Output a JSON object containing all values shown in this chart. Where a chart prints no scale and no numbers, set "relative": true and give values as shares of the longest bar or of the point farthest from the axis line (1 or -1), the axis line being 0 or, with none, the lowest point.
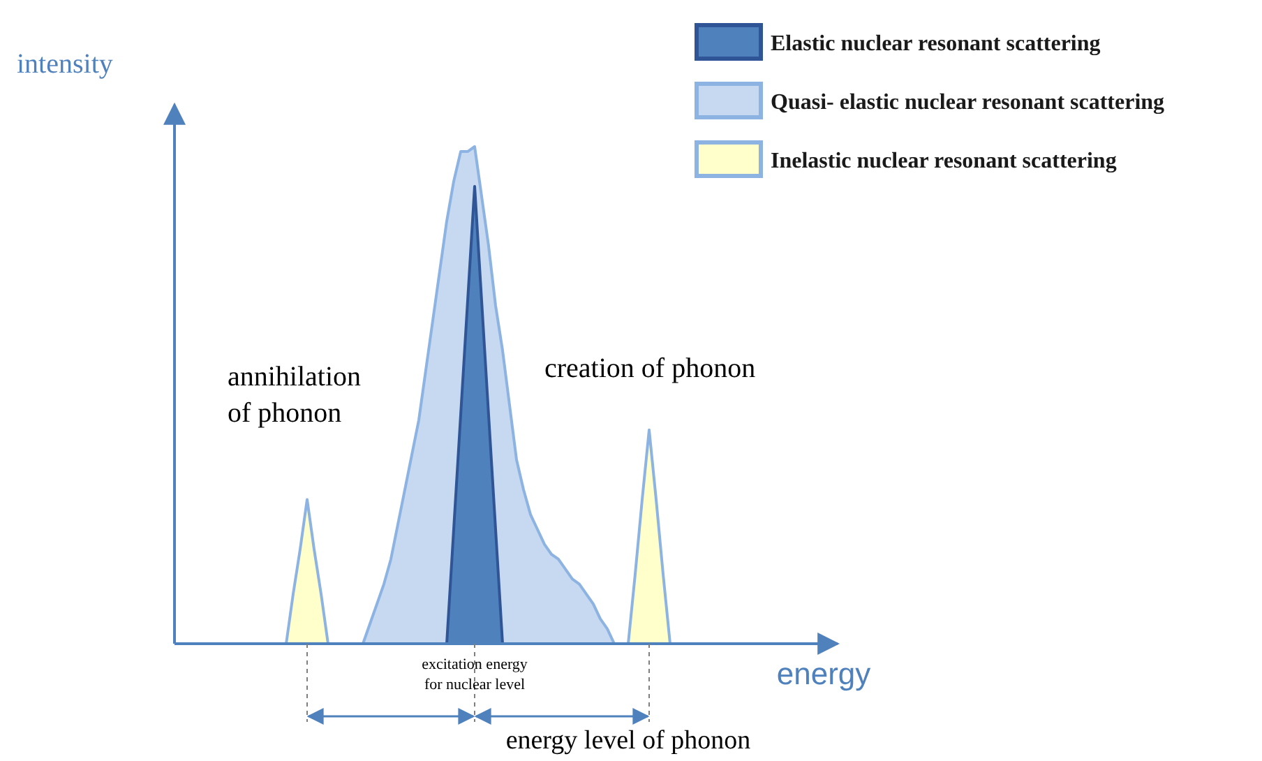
{
  "chart_data": {
    "type": "area",
    "relative": true,
    "xlabel": "energy",
    "ylabel": "intensity",
    "legend": "top right",
    "categories": [
      null,
      null,
      null,
      null,
      null,
      null,
      null,
      null,
      null,
      null,
      null,
      null,
      null,
      null,
      null,
      null,
      null,
      null,
      null,
      null,
      null,
      null,
      null,
      null,
      null,
      null,
      null,
      null,
      null,
      null,
      null,
      null,
      null,
      null,
      null,
      null,
      null,
      null,
      null,
      null,
      null,
      null,
      null,
      null,
      null,
      null,
      null,
      null,
      null,
      null,
      null,
      null,
      null,
      null,
      null,
      null,
      null,
      null,
      null,
      null,
      null,
      null,
      null,
      null,
      null,
      null,
      null,
      null,
      null,
      null,
      null,
      null,
      null,
      null,
      null,
      null,
      null,
      null,
      null,
      null,
      null,
      null,
      null,
      null,
      null,
      null,
      null,
      null,
      null,
      null,
      null,
      null,
      null,
      null
    ],
    "series": [
      {
        "name": "Quasi- elastic nuclear resonant scattering",
        "color": "#c6d9f1",
        "values": [
          null,
          null,
          null,
          null,
          null,
          null,
          null,
          null,
          null,
          null,
          null,
          null,
          null,
          null,
          null,
          null,
          null,
          null,
          null,
          null,
          null,
          null,
          null,
          null,
          null,
          null,
          null,
          0,
          0.04,
          0.08,
          0.12,
          0.17,
          0.24,
          0.31,
          0.38,
          0.45,
          0.55,
          0.65,
          0.75,
          0.85,
          0.93,
          0.99,
          0.99,
          1,
          0.9,
          0.8,
          0.68,
          0.59,
          0.48,
          0.37,
          0.31,
          0.26,
          0.23,
          0.2,
          0.18,
          0.17,
          0.15,
          0.13,
          0.12,
          0.1,
          0.08,
          0.05,
          0.03,
          0,
          null,
          null,
          null,
          null,
          null,
          null,
          null,
          null,
          null,
          null,
          null,
          null,
          null,
          null,
          null,
          null,
          null,
          null,
          null,
          null,
          null,
          null,
          null,
          null,
          null,
          null,
          null,
          null,
          null,
          null
        ]
      },
      {
        "name": "Elastic nuclear resonant scattering",
        "color": "#4f81bd",
        "values": [
          null,
          null,
          null,
          null,
          null,
          null,
          null,
          null,
          null,
          null,
          null,
          null,
          null,
          null,
          null,
          null,
          null,
          null,
          null,
          null,
          null,
          null,
          null,
          null,
          null,
          null,
          null,
          null,
          null,
          null,
          null,
          null,
          null,
          null,
          null,
          null,
          null,
          null,
          null,
          0,
          0.23,
          0.46,
          0.69,
          0.92,
          0.69,
          0.46,
          0.23,
          0,
          null,
          null,
          null,
          null,
          null,
          null,
          null,
          null,
          null,
          null,
          null,
          null,
          null,
          null,
          null,
          null,
          null,
          null,
          null,
          null,
          null,
          null,
          null,
          null,
          null,
          null,
          null,
          null,
          null,
          null,
          null,
          null,
          null,
          null,
          null,
          null,
          null,
          null,
          null,
          null,
          null,
          null,
          null,
          null,
          null,
          null
        ]
      },
      {
        "name": "Inelastic nuclear resonant scattering",
        "color": "#ffffcc",
        "values": [
          null,
          null,
          null,
          null,
          null,
          null,
          null,
          null,
          null,
          null,
          null,
          null,
          null,
          null,
          null,
          null,
          0,
          0.1,
          0.19,
          0.29,
          0.19,
          0.1,
          0,
          null,
          null,
          null,
          null,
          null,
          null,
          null,
          null,
          null,
          null,
          null,
          null,
          null,
          null,
          null,
          null,
          null,
          null,
          null,
          null,
          null,
          null,
          null,
          null,
          null,
          null,
          null,
          null,
          null,
          null,
          null,
          null,
          null,
          null,
          null,
          null,
          null,
          null,
          null,
          null,
          null,
          null,
          0,
          0.14,
          0.29,
          0.43,
          0.29,
          0.14,
          0,
          null,
          null,
          null,
          null,
          null,
          null,
          null,
          null,
          null,
          null,
          null,
          null,
          null,
          null,
          null,
          null,
          null,
          null,
          null,
          null,
          null,
          null
        ]
      }
    ],
    "annotations": [
      "annihilation of phonon",
      "creation of phonon",
      "excitation energy for nuclear level",
      "energy level of phonon"
    ]
  }
}
